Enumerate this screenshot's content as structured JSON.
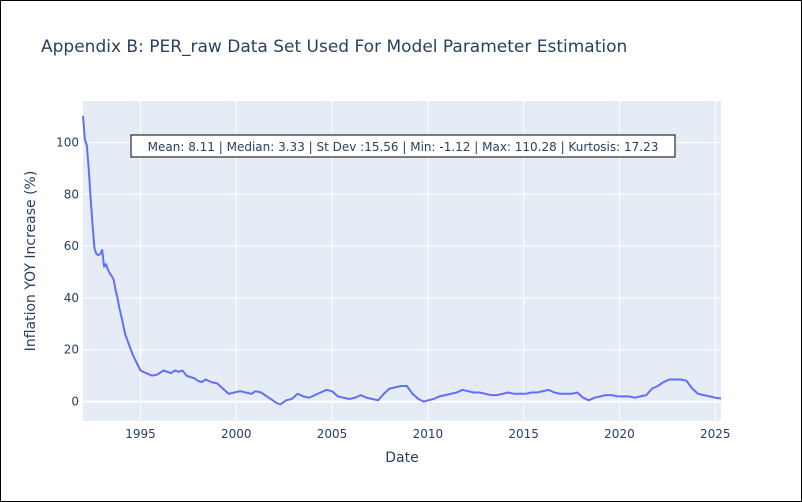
{
  "chart_data": {
    "type": "line",
    "title": "Appendix B: PER_raw Data Set Used For Model Parameter Estimation",
    "xlabel": "Date",
    "ylabel": "Inflation YOY Increase (%)",
    "xlim": [
      1992.0,
      2025.3
    ],
    "ylim": [
      -7.5,
      116
    ],
    "x_ticks": [
      1995,
      2000,
      2005,
      2010,
      2015,
      2020,
      2025
    ],
    "x_tick_labels": [
      "1995",
      "2000",
      "2005",
      "2010",
      "2015",
      "2020",
      "2025"
    ],
    "y_ticks": [
      0,
      20,
      40,
      60,
      80,
      100
    ],
    "y_tick_labels": [
      "0",
      "20",
      "40",
      "60",
      "80",
      "100"
    ],
    "grid": true,
    "line_color": "#636efa",
    "annotation": "Mean: 8.11 | Median: 3.33 | St Dev :15.56 | Min: -1.12 | Max: 110.28 | Kurtosis: 17.23",
    "series": [
      {
        "x": [
          1992.0,
          1992.1,
          1992.2,
          1992.3,
          1992.4,
          1992.5,
          1992.6,
          1992.7,
          1992.8,
          1992.9,
          1993.0,
          1993.1,
          1993.2,
          1993.3,
          1993.4,
          1993.5,
          1993.6,
          1993.7,
          1993.8,
          1993.9,
          1994.0,
          1994.2,
          1994.4,
          1994.6,
          1994.8,
          1995.0,
          1995.3,
          1995.6,
          1995.9,
          1996.2,
          1996.4,
          1996.6,
          1996.8,
          1997.0,
          1997.2,
          1997.4,
          1997.6,
          1997.8,
          1998.0,
          1998.2,
          1998.4,
          1998.7,
          1999.0,
          1999.3,
          1999.6,
          1999.9,
          2000.2,
          2000.5,
          2000.8,
          2001.0,
          2001.3,
          2001.6,
          2001.9,
          2002.1,
          2002.3,
          2002.6,
          2002.9,
          2003.2,
          2003.5,
          2003.8,
          2004.1,
          2004.4,
          2004.7,
          2005.0,
          2005.3,
          2005.6,
          2005.9,
          2006.2,
          2006.5,
          2006.8,
          2007.1,
          2007.4,
          2007.7,
          2008.0,
          2008.3,
          2008.6,
          2008.9,
          2009.2,
          2009.5,
          2009.8,
          2010.0,
          2010.3,
          2010.6,
          2010.9,
          2011.2,
          2011.5,
          2011.8,
          2012.1,
          2012.4,
          2012.7,
          2013.0,
          2013.3,
          2013.6,
          2013.9,
          2014.2,
          2014.5,
          2014.8,
          2015.1,
          2015.4,
          2015.7,
          2016.0,
          2016.3,
          2016.6,
          2016.9,
          2017.2,
          2017.5,
          2017.8,
          2018.1,
          2018.4,
          2018.7,
          2019.0,
          2019.3,
          2019.6,
          2019.9,
          2020.2,
          2020.5,
          2020.8,
          2021.1,
          2021.4,
          2021.7,
          2022.0,
          2022.3,
          2022.6,
          2022.9,
          2023.2,
          2023.5,
          2023.8,
          2024.1,
          2024.4,
          2024.7,
          2025.0,
          2025.3
        ],
        "y": [
          110.28,
          101,
          99,
          90,
          78,
          68,
          59,
          57,
          56.5,
          57,
          58.5,
          52,
          53,
          51,
          49.5,
          48.5,
          47,
          43,
          40,
          36,
          33,
          26,
          22,
          18,
          15,
          12,
          11,
          10,
          10.5,
          12,
          11.5,
          11,
          12,
          11.5,
          12,
          10,
          9.5,
          9,
          8,
          7.5,
          8.5,
          7.5,
          7,
          5,
          3,
          3.5,
          4,
          3.5,
          3,
          4,
          3.5,
          2,
          0.5,
          -0.5,
          -1.12,
          0.5,
          1,
          3,
          2,
          1.5,
          2.5,
          3.5,
          4.5,
          4,
          2,
          1.5,
          1,
          1.5,
          2.5,
          1.5,
          1,
          0.5,
          3,
          5,
          5.5,
          6,
          6,
          3,
          1,
          0,
          0.5,
          1,
          2,
          2.5,
          3,
          3.5,
          4.5,
          4,
          3.5,
          3.5,
          3,
          2.5,
          2.5,
          3,
          3.5,
          3,
          3,
          3,
          3.5,
          3.5,
          4,
          4.5,
          3.5,
          3,
          3,
          3,
          3.5,
          1.5,
          0.5,
          1.5,
          2,
          2.5,
          2.5,
          2,
          2,
          2,
          1.5,
          2,
          2.5,
          5,
          6,
          7.5,
          8.5,
          8.5,
          8.5,
          8,
          5,
          3,
          2.5,
          2,
          1.5,
          1.2
        ]
      }
    ]
  }
}
